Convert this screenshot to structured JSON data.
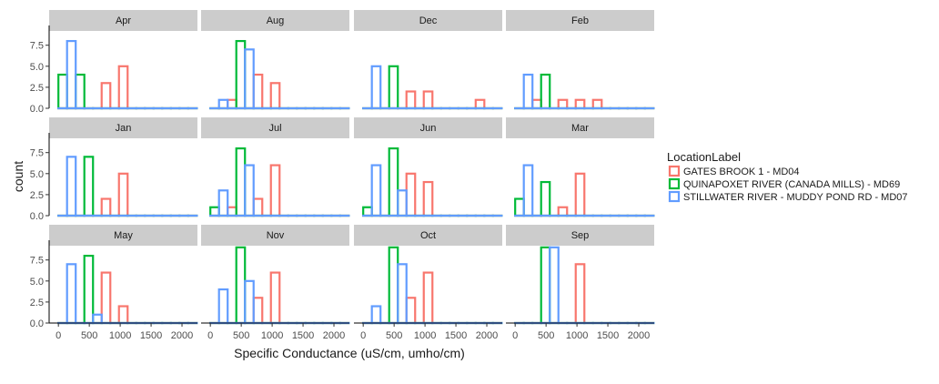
{
  "chart_data": {
    "type": "bar",
    "subtype": "faceted-histogram",
    "xlabel": "Specific Conductance (uS/cm, umho/cm)",
    "ylabel": "count",
    "xlim": [
      -150,
      2250
    ],
    "ylim": [
      0,
      9.2
    ],
    "x_ticks": [
      0,
      500,
      1000,
      1500,
      2000
    ],
    "x_tick_labels": [
      "0",
      "500",
      "1000",
      "1500",
      "2000"
    ],
    "y_ticks": [
      0,
      2.5,
      5,
      7.5
    ],
    "y_tick_labels": [
      "0.0",
      "2.5",
      "5.0",
      "7.5"
    ],
    "bins": [
      0,
      140,
      280,
      420,
      560,
      700,
      840,
      980,
      1120,
      1260,
      1400,
      1540,
      1680,
      1820,
      1960,
      2100
    ],
    "legend": {
      "title": "LocationLabel",
      "position": "right",
      "entries": [
        {
          "name": "GATES BROOK 1 - MD04",
          "color": "#F8766D"
        },
        {
          "name": "QUINAPOXET RIVER (CANADA MILLS) - MD69",
          "color": "#00BA38"
        },
        {
          "name": "STILLWATER RIVER - MUDDY POND RD - MD07",
          "color": "#619CFF"
        }
      ]
    },
    "panels": [
      {
        "label": "Apr",
        "series": [
          {
            "name": "GATES BROOK 1 - MD04",
            "values": [
              0,
              0,
              0,
              0,
              0,
              3,
              0,
              5,
              0,
              0,
              0,
              0,
              0,
              0,
              0,
              0
            ]
          },
          {
            "name": "QUINAPOXET RIVER (CANADA MILLS) - MD69",
            "values": [
              4,
              0,
              4,
              0,
              0,
              0,
              0,
              0,
              0,
              0,
              0,
              0,
              0,
              0,
              0,
              0
            ]
          },
          {
            "name": "STILLWATER RIVER - MUDDY POND RD - MD07",
            "values": [
              0,
              8,
              0,
              0,
              0,
              0,
              0,
              0,
              0,
              0,
              0,
              0,
              0,
              0,
              0,
              0
            ]
          }
        ]
      },
      {
        "label": "Aug",
        "series": [
          {
            "name": "GATES BROOK 1 - MD04",
            "values": [
              0,
              0,
              1,
              0,
              0,
              4,
              0,
              3,
              0,
              0,
              0,
              0,
              0,
              0,
              0,
              0
            ]
          },
          {
            "name": "QUINAPOXET RIVER (CANADA MILLS) - MD69",
            "values": [
              0,
              0,
              0,
              8,
              0,
              0,
              0,
              0,
              0,
              0,
              0,
              0,
              0,
              0,
              0,
              0
            ]
          },
          {
            "name": "STILLWATER RIVER - MUDDY POND RD - MD07",
            "values": [
              0,
              1,
              0,
              0,
              7,
              0,
              0,
              0,
              0,
              0,
              0,
              0,
              0,
              0,
              0,
              0
            ]
          }
        ]
      },
      {
        "label": "Dec",
        "series": [
          {
            "name": "GATES BROOK 1 - MD04",
            "values": [
              0,
              0,
              0,
              0,
              0,
              2,
              0,
              2,
              0,
              0,
              0,
              0,
              0,
              1,
              0,
              0
            ]
          },
          {
            "name": "QUINAPOXET RIVER (CANADA MILLS) - MD69",
            "values": [
              0,
              0,
              0,
              5,
              0,
              0,
              0,
              0,
              0,
              0,
              0,
              0,
              0,
              0,
              0,
              0
            ]
          },
          {
            "name": "STILLWATER RIVER - MUDDY POND RD - MD07",
            "values": [
              0,
              5,
              0,
              0,
              0,
              0,
              0,
              0,
              0,
              0,
              0,
              0,
              0,
              0,
              0,
              0
            ]
          }
        ]
      },
      {
        "label": "Feb",
        "series": [
          {
            "name": "GATES BROOK 1 - MD04",
            "values": [
              0,
              0,
              1,
              0,
              0,
              1,
              0,
              1,
              0,
              1,
              0,
              0,
              0,
              0,
              0,
              0
            ]
          },
          {
            "name": "QUINAPOXET RIVER (CANADA MILLS) - MD69",
            "values": [
              0,
              0,
              0,
              4,
              0,
              0,
              0,
              0,
              0,
              0,
              0,
              0,
              0,
              0,
              0,
              0
            ]
          },
          {
            "name": "STILLWATER RIVER - MUDDY POND RD - MD07",
            "values": [
              0,
              4,
              0,
              0,
              0,
              0,
              0,
              0,
              0,
              0,
              0,
              0,
              0,
              0,
              0,
              0
            ]
          }
        ]
      },
      {
        "label": "Jan",
        "series": [
          {
            "name": "GATES BROOK 1 - MD04",
            "values": [
              0,
              0,
              0,
              0,
              0,
              2,
              0,
              5,
              0,
              0,
              0,
              0,
              0,
              0,
              0,
              0
            ]
          },
          {
            "name": "QUINAPOXET RIVER (CANADA MILLS) - MD69",
            "values": [
              0,
              0,
              0,
              7,
              0,
              0,
              0,
              0,
              0,
              0,
              0,
              0,
              0,
              0,
              0,
              0
            ]
          },
          {
            "name": "STILLWATER RIVER - MUDDY POND RD - MD07",
            "values": [
              0,
              7,
              0,
              0,
              0,
              0,
              0,
              0,
              0,
              0,
              0,
              0,
              0,
              0,
              0,
              0
            ]
          }
        ]
      },
      {
        "label": "Jul",
        "series": [
          {
            "name": "GATES BROOK 1 - MD04",
            "values": [
              0,
              0,
              1,
              0,
              0,
              2,
              0,
              6,
              0,
              0,
              0,
              0,
              0,
              0,
              0,
              0
            ]
          },
          {
            "name": "QUINAPOXET RIVER (CANADA MILLS) - MD69",
            "values": [
              1,
              0,
              0,
              8,
              0,
              0,
              0,
              0,
              0,
              0,
              0,
              0,
              0,
              0,
              0,
              0
            ]
          },
          {
            "name": "STILLWATER RIVER - MUDDY POND RD - MD07",
            "values": [
              0,
              3,
              0,
              0,
              6,
              0,
              0,
              0,
              0,
              0,
              0,
              0,
              0,
              0,
              0,
              0
            ]
          }
        ]
      },
      {
        "label": "Jun",
        "series": [
          {
            "name": "GATES BROOK 1 - MD04",
            "values": [
              0,
              0,
              0,
              0,
              0,
              5,
              0,
              4,
              0,
              0,
              0,
              0,
              0,
              0,
              0,
              0
            ]
          },
          {
            "name": "QUINAPOXET RIVER (CANADA MILLS) - MD69",
            "values": [
              1,
              0,
              0,
              8,
              0,
              0,
              0,
              0,
              0,
              0,
              0,
              0,
              0,
              0,
              0,
              0
            ]
          },
          {
            "name": "STILLWATER RIVER - MUDDY POND RD - MD07",
            "values": [
              0,
              6,
              0,
              0,
              3,
              0,
              0,
              0,
              0,
              0,
              0,
              0,
              0,
              0,
              0,
              0
            ]
          }
        ]
      },
      {
        "label": "Mar",
        "series": [
          {
            "name": "GATES BROOK 1 - MD04",
            "values": [
              0,
              0,
              0,
              0,
              0,
              1,
              0,
              5,
              0,
              0,
              0,
              0,
              0,
              0,
              0,
              0
            ]
          },
          {
            "name": "QUINAPOXET RIVER (CANADA MILLS) - MD69",
            "values": [
              2,
              0,
              0,
              4,
              0,
              0,
              0,
              0,
              0,
              0,
              0,
              0,
              0,
              0,
              0,
              0
            ]
          },
          {
            "name": "STILLWATER RIVER - MUDDY POND RD - MD07",
            "values": [
              0,
              6,
              0,
              0,
              0,
              0,
              0,
              0,
              0,
              0,
              0,
              0,
              0,
              0,
              0,
              0
            ]
          }
        ]
      },
      {
        "label": "May",
        "series": [
          {
            "name": "GATES BROOK 1 - MD04",
            "values": [
              0,
              0,
              0,
              0,
              0,
              6,
              0,
              2,
              0,
              0,
              0,
              0,
              0,
              0,
              0,
              0
            ]
          },
          {
            "name": "QUINAPOXET RIVER (CANADA MILLS) - MD69",
            "values": [
              0,
              0,
              0,
              8,
              0,
              0,
              0,
              0,
              0,
              0,
              0,
              0,
              0,
              0,
              0,
              0
            ]
          },
          {
            "name": "STILLWATER RIVER - MUDDY POND RD - MD07",
            "values": [
              0,
              7,
              0,
              0,
              1,
              0,
              0,
              0,
              0,
              0,
              0,
              0,
              0,
              0,
              0,
              0
            ]
          }
        ]
      },
      {
        "label": "Nov",
        "series": [
          {
            "name": "GATES BROOK 1 - MD04",
            "values": [
              0,
              0,
              0,
              0,
              0,
              3,
              0,
              6,
              0,
              0,
              0,
              0,
              0,
              0,
              0,
              0
            ]
          },
          {
            "name": "QUINAPOXET RIVER (CANADA MILLS) - MD69",
            "values": [
              0,
              0,
              0,
              9,
              0,
              0,
              0,
              0,
              0,
              0,
              0,
              0,
              0,
              0,
              0,
              0
            ]
          },
          {
            "name": "STILLWATER RIVER - MUDDY POND RD - MD07",
            "values": [
              0,
              4,
              0,
              0,
              5,
              0,
              0,
              0,
              0,
              0,
              0,
              0,
              0,
              0,
              0,
              0
            ]
          }
        ]
      },
      {
        "label": "Oct",
        "series": [
          {
            "name": "GATES BROOK 1 - MD04",
            "values": [
              0,
              0,
              0,
              0,
              0,
              3,
              0,
              6,
              0,
              0,
              0,
              0,
              0,
              0,
              0,
              0
            ]
          },
          {
            "name": "QUINAPOXET RIVER (CANADA MILLS) - MD69",
            "values": [
              0,
              0,
              0,
              9,
              0,
              0,
              0,
              0,
              0,
              0,
              0,
              0,
              0,
              0,
              0,
              0
            ]
          },
          {
            "name": "STILLWATER RIVER - MUDDY POND RD - MD07",
            "values": [
              0,
              2,
              0,
              0,
              7,
              0,
              0,
              0,
              0,
              0,
              0,
              0,
              0,
              0,
              0,
              0
            ]
          }
        ]
      },
      {
        "label": "Sep",
        "series": [
          {
            "name": "GATES BROOK 1 - MD04",
            "values": [
              0,
              0,
              0,
              0,
              0,
              0,
              0,
              7,
              0,
              0,
              0,
              0,
              0,
              0,
              0,
              0
            ]
          },
          {
            "name": "QUINAPOXET RIVER (CANADA MILLS) - MD69",
            "values": [
              0,
              0,
              0,
              9,
              0,
              0,
              0,
              0,
              0,
              0,
              0,
              0,
              0,
              0,
              0,
              0
            ]
          },
          {
            "name": "STILLWATER RIVER - MUDDY POND RD - MD07",
            "values": [
              0,
              0,
              0,
              0,
              9,
              0,
              0,
              0,
              0,
              0,
              0,
              0,
              0,
              0,
              0,
              0
            ]
          }
        ]
      }
    ]
  }
}
